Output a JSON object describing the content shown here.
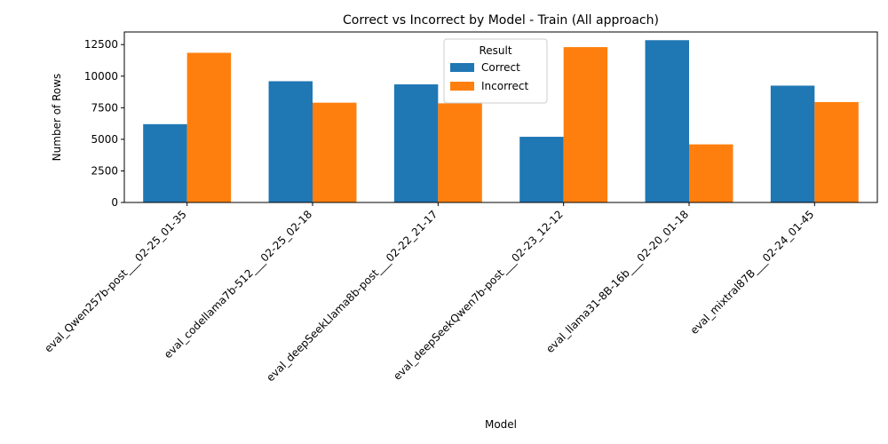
{
  "chart_data": {
    "type": "bar",
    "title": "Correct vs Incorrect by Model - Train (All approach)",
    "xlabel": "Model",
    "ylabel": "Number of Rows",
    "categories": [
      "eval_Qwen257b-post___02-25_01-35",
      "eval_codellama7b-512___02-25_02-18",
      "eval_deepSeekLlama8b-post___02-22_21-17",
      "eval_deepSeekQwen7b-post___02-23_12-12",
      "eval_llama31-8B-16b___02-20_01-18",
      "eval_mixtral87B___02-24_01-45"
    ],
    "series": [
      {
        "name": "Correct",
        "color": "#1f77b4",
        "values": [
          6200,
          9600,
          9350,
          5200,
          12850,
          9250
        ]
      },
      {
        "name": "Incorrect",
        "color": "#ff7f0e",
        "values": [
          11850,
          7900,
          7850,
          12300,
          4600,
          7950
        ]
      }
    ],
    "ylim": [
      0,
      13500
    ],
    "yticks": [
      0,
      2500,
      5000,
      7500,
      10000,
      12500
    ],
    "legend": {
      "title": "Result",
      "position": "top-center"
    },
    "grid": false
  }
}
